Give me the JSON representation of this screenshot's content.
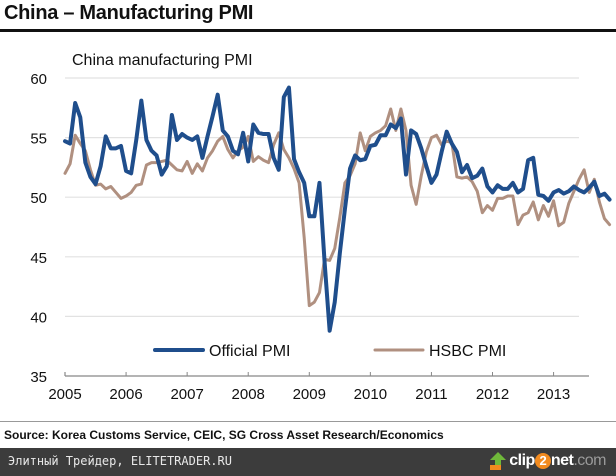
{
  "header": {
    "title": "China – Manufacturing PMI"
  },
  "source_note": "Source: Korea Customs Service, CEIC, SG Cross Asset Research/Economics",
  "footer": {
    "watermark_text": "Элитный Трейдер, ELITETRADER.RU",
    "logo_icon": "upload-arrow-icon",
    "logo_parts": {
      "a": "clip",
      "b": "2",
      "c": "net",
      "d": ".com"
    }
  },
  "chart_data": {
    "type": "line",
    "title": "China manufacturing PMI",
    "xlabel": "",
    "ylabel": "",
    "ylim": [
      35,
      60
    ],
    "yticks": [
      35,
      40,
      45,
      50,
      55,
      60
    ],
    "xlim": [
      2005.0,
      2013.58
    ],
    "xticks": [
      2005,
      2006,
      2007,
      2008,
      2009,
      2010,
      2011,
      2012,
      2013
    ],
    "grid": true,
    "legend": {
      "position": "bottom-center",
      "entries": [
        "Official PMI",
        "HSBC PMI"
      ]
    },
    "x_start": "2005-01",
    "frequency": "monthly",
    "series": [
      {
        "name": "Official PMI",
        "color": "#1f4e8c",
        "values": [
          54.7,
          54.5,
          57.9,
          56.7,
          52.9,
          51.7,
          51.1,
          52.6,
          55.1,
          54.1,
          54.1,
          54.3,
          52.2,
          52.0,
          54.8,
          58.1,
          54.8,
          53.9,
          53.5,
          51.9,
          52.6,
          56.9,
          54.8,
          55.3,
          55.0,
          54.8,
          55.1,
          53.3,
          55.1,
          56.8,
          58.6,
          55.6,
          55.1,
          53.9,
          53.6,
          55.4,
          53.0,
          56.1,
          55.4,
          55.3,
          55.3,
          53.3,
          52.3,
          58.4,
          59.2,
          53.2,
          52.1,
          51.2,
          48.4,
          48.4,
          51.2,
          44.6,
          38.8,
          41.2,
          45.3,
          49.0,
          52.4,
          53.5,
          53.1,
          53.2,
          54.3,
          54.4,
          55.2,
          55.2,
          56.1,
          55.8,
          56.6,
          51.9,
          55.6,
          55.3,
          54.1,
          52.6,
          51.2,
          51.9,
          53.8,
          55.5,
          54.5,
          53.8,
          52.1,
          52.7,
          51.6,
          51.8,
          52.4,
          50.9,
          50.4,
          51.0,
          50.7,
          50.7,
          51.2,
          50.4,
          50.7,
          53.1,
          53.3,
          50.2,
          50.1,
          49.7,
          50.4,
          50.6,
          50.3,
          50.5,
          50.9,
          50.6,
          50.4,
          50.8,
          51.3,
          50.1,
          50.3,
          49.8
        ],
        "note_values_cover": "2005-01 onward; plotted to mid-2013"
      },
      {
        "name": "HSBC PMI",
        "color": "#b09080",
        "values": [
          52.0,
          52.8,
          55.2,
          54.5,
          53.9,
          52.3,
          51.0,
          51.1,
          50.7,
          50.9,
          50.4,
          49.9,
          50.1,
          50.4,
          51.0,
          51.1,
          52.7,
          52.9,
          52.9,
          53.0,
          53.1,
          52.7,
          52.3,
          52.2,
          53.0,
          52.0,
          52.8,
          52.2,
          53.3,
          53.9,
          54.7,
          55.1,
          54.0,
          53.3,
          53.9,
          54.2,
          55.1,
          53.0,
          53.4,
          53.1,
          52.9,
          54.4,
          55.4,
          54.0,
          53.3,
          52.4,
          51.2,
          46.6,
          40.9,
          41.2,
          42.0,
          44.8,
          44.7,
          45.7,
          48.3,
          51.2,
          51.8,
          52.8,
          55.4,
          53.9,
          55.1,
          55.4,
          55.6,
          56.0,
          57.4,
          55.6,
          57.4,
          55.6,
          51.0,
          49.4,
          51.8,
          53.8,
          55.0,
          55.2,
          54.4,
          54.7,
          54.6,
          51.7,
          51.6,
          51.7,
          51.3,
          50.5,
          48.7,
          49.3,
          48.9,
          49.9,
          49.9,
          50.1,
          50.1,
          47.7,
          48.5,
          48.7,
          49.6,
          48.1,
          49.3,
          48.4,
          49.7,
          47.6,
          47.9,
          49.5,
          50.5,
          51.5,
          52.3,
          50.4,
          51.5,
          49.6,
          48.2,
          47.7
        ]
      }
    ]
  }
}
